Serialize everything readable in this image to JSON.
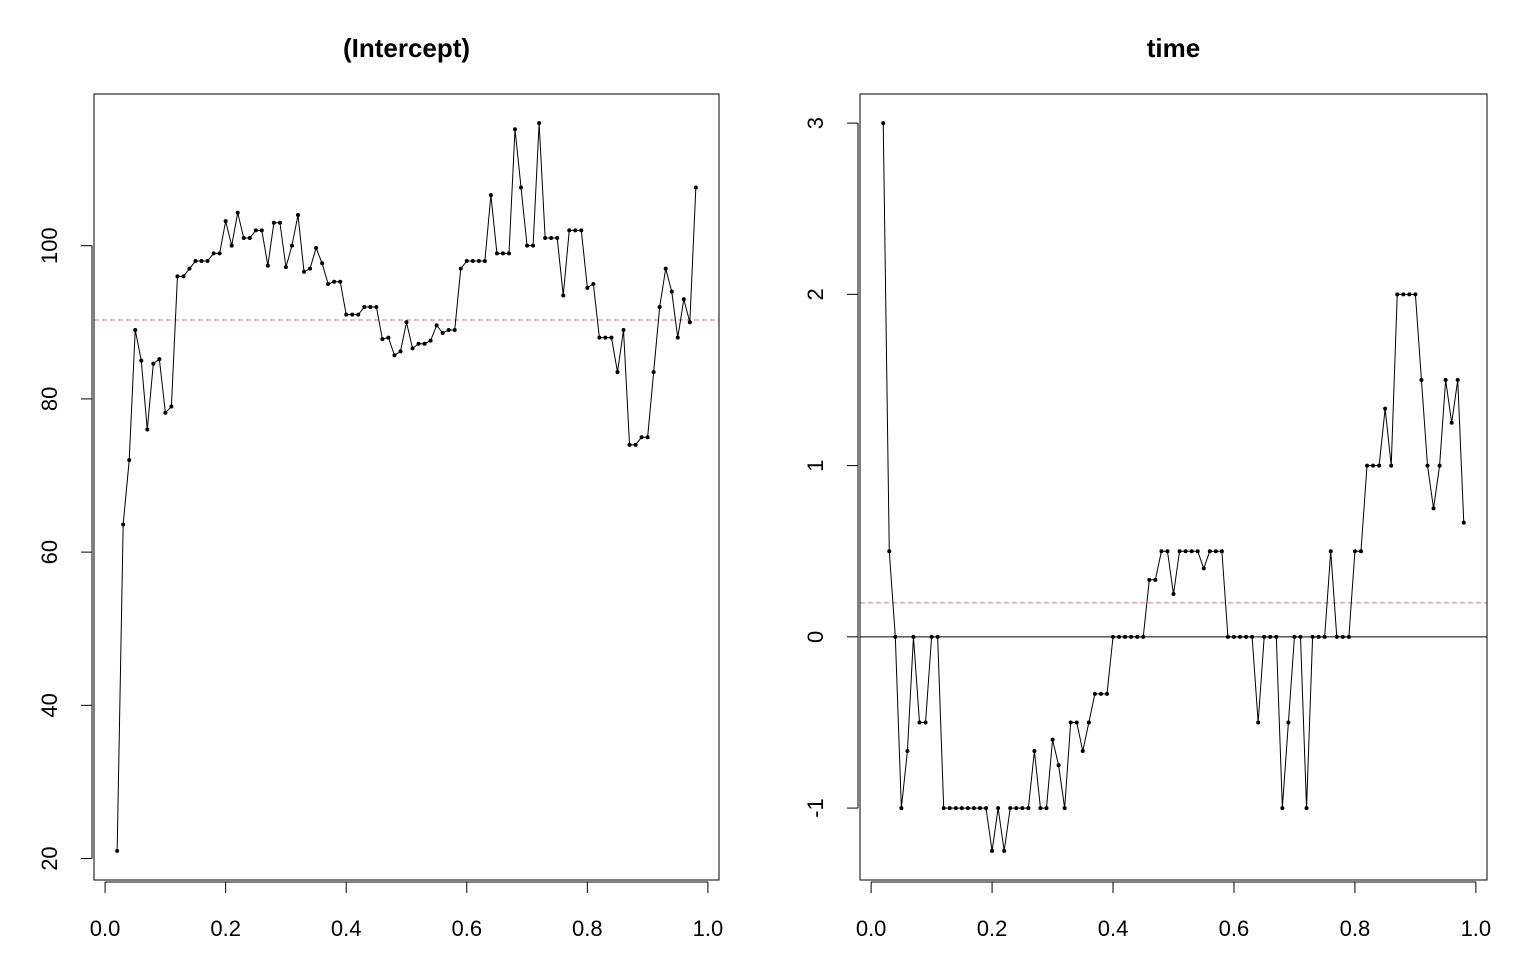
{
  "chart_data": [
    {
      "type": "line",
      "title": "(Intercept)",
      "x": [
        0.02,
        0.03,
        0.04,
        0.05,
        0.06,
        0.07,
        0.08,
        0.09,
        0.1,
        0.11,
        0.12,
        0.13,
        0.14,
        0.15,
        0.16,
        0.17,
        0.18,
        0.19,
        0.2,
        0.21,
        0.22,
        0.23,
        0.24,
        0.25,
        0.26,
        0.27,
        0.28,
        0.29,
        0.3,
        0.31,
        0.32,
        0.33,
        0.34,
        0.35,
        0.36,
        0.37,
        0.38,
        0.39,
        0.4,
        0.41,
        0.42,
        0.43,
        0.44,
        0.45,
        0.46,
        0.47,
        0.48,
        0.49,
        0.5,
        0.51,
        0.52,
        0.53,
        0.54,
        0.55,
        0.56,
        0.57,
        0.58,
        0.59,
        0.6,
        0.61,
        0.62,
        0.63,
        0.64,
        0.65,
        0.66,
        0.67,
        0.68,
        0.69,
        0.7,
        0.71,
        0.72,
        0.73,
        0.74,
        0.75,
        0.76,
        0.77,
        0.78,
        0.79,
        0.8,
        0.81,
        0.82,
        0.83,
        0.84,
        0.85,
        0.86,
        0.87,
        0.88,
        0.89,
        0.9,
        0.91,
        0.92,
        0.93,
        0.94,
        0.95,
        0.96,
        0.97,
        0.98
      ],
      "series": [
        {
          "color": "#000000",
          "values": [
            21,
            63.6,
            72,
            89,
            85,
            76,
            84.6,
            85.2,
            78.2,
            79,
            96,
            96,
            97,
            98,
            98,
            98,
            99,
            99,
            103.2,
            100,
            104.3,
            101,
            101,
            102,
            102,
            97.4,
            103,
            103,
            97.2,
            100,
            104,
            96.6,
            97,
            99.7,
            97.7,
            95,
            95.3,
            95.3,
            91,
            91,
            91,
            92,
            92,
            92,
            87.8,
            88,
            85.7,
            86.2,
            90,
            86.6,
            87.2,
            87.2,
            87.6,
            89.6,
            88.6,
            89,
            89,
            97,
            98,
            98,
            98,
            98,
            106.6,
            99,
            99,
            99,
            115.2,
            107.6,
            100,
            100,
            116,
            101,
            101,
            101,
            93.5,
            102,
            102,
            102,
            94.5,
            95,
            88,
            88,
            88,
            83.5,
            89,
            74,
            74,
            75,
            75,
            83.5,
            92,
            97,
            94,
            88,
            93,
            90,
            107.6
          ]
        }
      ],
      "hlines": [
        {
          "value": 90.3,
          "style": "dashed",
          "color": "#d9728a"
        }
      ],
      "xlim": [
        -0.0184,
        1.0184
      ],
      "xticks": [
        {
          "value": 0,
          "label": "0.0"
        },
        0.2,
        0.4,
        0.6,
        0.8,
        {
          "value": 1,
          "label": "1.0"
        }
      ],
      "ylim": [
        17.2,
        119.8
      ],
      "yticks": [
        20,
        40,
        60,
        80,
        100
      ]
    },
    {
      "type": "line",
      "title": "time",
      "x": [
        0.02,
        0.03,
        0.04,
        0.05,
        0.06,
        0.07,
        0.08,
        0.09,
        0.1,
        0.11,
        0.12,
        0.13,
        0.14,
        0.15,
        0.16,
        0.17,
        0.18,
        0.19,
        0.2,
        0.21,
        0.22,
        0.23,
        0.24,
        0.25,
        0.26,
        0.27,
        0.28,
        0.29,
        0.3,
        0.31,
        0.32,
        0.33,
        0.34,
        0.35,
        0.36,
        0.37,
        0.38,
        0.39,
        0.4,
        0.41,
        0.42,
        0.43,
        0.44,
        0.45,
        0.46,
        0.47,
        0.48,
        0.49,
        0.5,
        0.51,
        0.52,
        0.53,
        0.54,
        0.55,
        0.56,
        0.57,
        0.58,
        0.59,
        0.6,
        0.61,
        0.62,
        0.63,
        0.64,
        0.65,
        0.66,
        0.67,
        0.68,
        0.69,
        0.7,
        0.71,
        0.72,
        0.73,
        0.74,
        0.75,
        0.76,
        0.77,
        0.78,
        0.79,
        0.8,
        0.81,
        0.82,
        0.83,
        0.84,
        0.85,
        0.86,
        0.87,
        0.88,
        0.89,
        0.9,
        0.91,
        0.92,
        0.93,
        0.94,
        0.95,
        0.96,
        0.97,
        0.98
      ],
      "series": [
        {
          "color": "#000000",
          "values": [
            3,
            0.5,
            0,
            -1,
            -0.667,
            0,
            -0.5,
            -0.5,
            0,
            0,
            -1,
            -1,
            -1,
            -1,
            -1,
            -1,
            -1,
            -1,
            -1.25,
            -1,
            -1.25,
            -1,
            -1,
            -1,
            -1,
            -0.667,
            -1,
            -1,
            -0.6,
            -0.75,
            -1,
            -0.5,
            -0.5,
            -0.667,
            -0.5,
            -0.333,
            -0.333,
            -0.333,
            0,
            0,
            0,
            0,
            0,
            0,
            0.333,
            0.333,
            0.5,
            0.5,
            0.25,
            0.5,
            0.5,
            0.5,
            0.5,
            0.4,
            0.5,
            0.5,
            0.5,
            0,
            0,
            0,
            0,
            0,
            -0.5,
            0,
            0,
            0,
            -1,
            -0.5,
            0,
            0,
            -1,
            0,
            0,
            0,
            0.5,
            0,
            0,
            0,
            0.5,
            0.5,
            1,
            1,
            1,
            1.333,
            1,
            2,
            2,
            2,
            2,
            1.5,
            1,
            0.75,
            1,
            1.5,
            1.25,
            1.5,
            0.667
          ]
        }
      ],
      "hlines": [
        {
          "value": 0.198,
          "style": "dashed",
          "color": "#d9728a"
        },
        {
          "value": 0,
          "style": "solid",
          "color": "#000000"
        }
      ],
      "xlim": [
        -0.0184,
        1.0184
      ],
      "xticks": [
        {
          "value": 0,
          "label": "0.0"
        },
        0.2,
        0.4,
        0.6,
        0.8,
        {
          "value": 1,
          "label": "1.0"
        }
      ],
      "ylim": [
        -1.42,
        3.17
      ],
      "yticks": [
        -1,
        0,
        1,
        2,
        3
      ]
    }
  ]
}
